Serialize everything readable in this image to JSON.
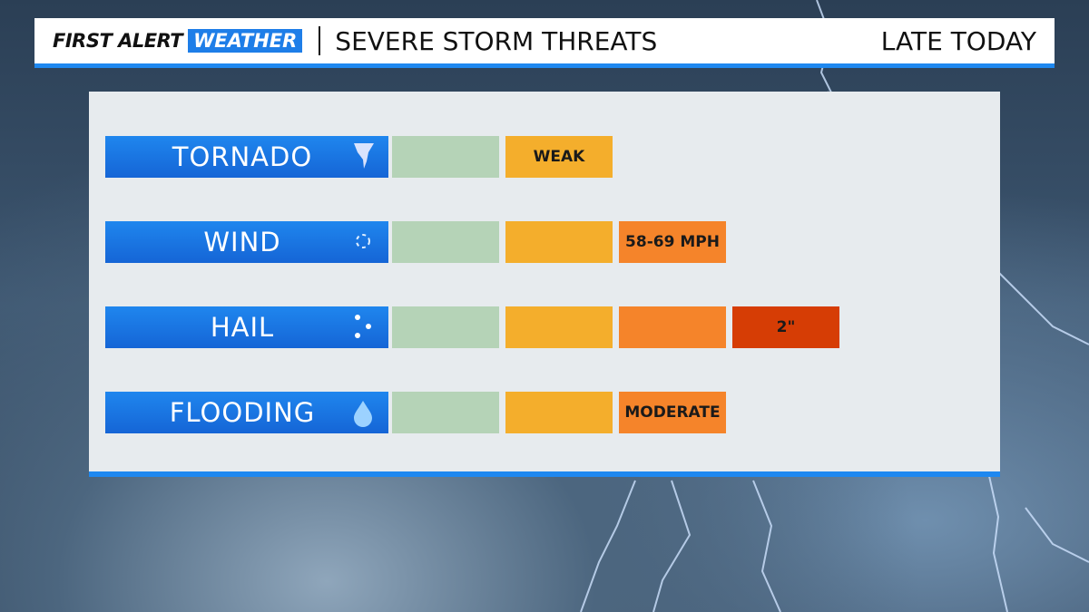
{
  "header": {
    "brand_first": "FIRST ALERT",
    "brand_second": "WEATHER",
    "title": "SEVERE STORM THREATS",
    "timeframe": "LATE TODAY"
  },
  "threats": [
    {
      "label": "TORNADO",
      "level": 2,
      "rating": "WEAK"
    },
    {
      "label": "WIND",
      "level": 3,
      "rating": "58-69 MPH"
    },
    {
      "label": "HAIL",
      "level": 4,
      "rating": "2\""
    },
    {
      "label": "FLOODING",
      "level": 3,
      "rating": "MODERATE"
    }
  ],
  "level_colors": [
    "#b5d3b7",
    "#f4ae2c",
    "#f5842a",
    "#d63d05"
  ]
}
